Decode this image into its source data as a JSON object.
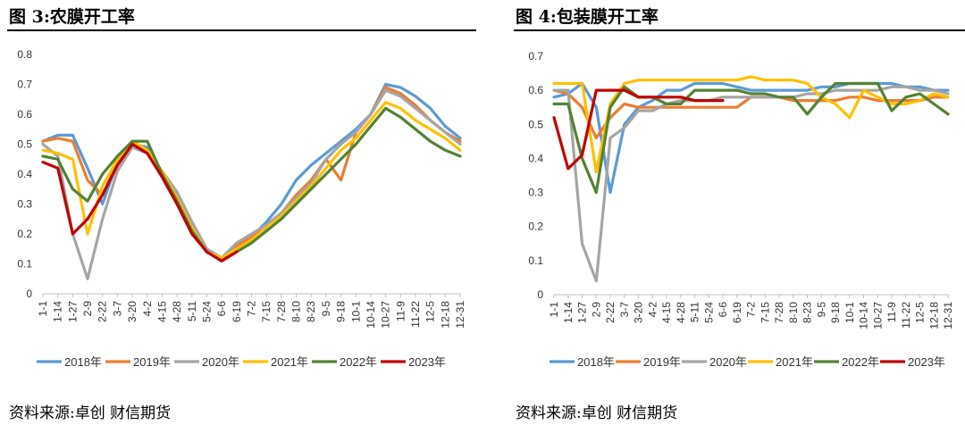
{
  "chart_data": [
    {
      "type": "line",
      "figure_label": "图 3:",
      "title": "农膜开工率",
      "source": "资料来源:卓创 财信期货",
      "ylim": [
        0,
        0.8
      ],
      "yticks": [
        "0",
        "0.1",
        "0.2",
        "0.3",
        "0.4",
        "0.5",
        "0.6",
        "0.7",
        "0.8"
      ],
      "categories": [
        "1-1",
        "1-14",
        "1-27",
        "2-9",
        "2-22",
        "3-7",
        "3-20",
        "4-2",
        "4-15",
        "4-28",
        "5-11",
        "5-24",
        "6-6",
        "6-19",
        "7-2",
        "7-15",
        "7-28",
        "8-10",
        "8-23",
        "9-5",
        "9-18",
        "10-1",
        "10-14",
        "10-27",
        "11-9",
        "11-22",
        "12-5",
        "12-18",
        "12-31"
      ],
      "legend_position": "bottom",
      "grid": false,
      "series": [
        {
          "name": "2018年",
          "color": "#5B9BD5",
          "values": [
            0.51,
            0.53,
            0.53,
            0.42,
            0.3,
            0.44,
            0.5,
            0.49,
            0.4,
            0.33,
            0.22,
            0.14,
            0.12,
            0.16,
            0.19,
            0.24,
            0.3,
            0.38,
            0.43,
            0.47,
            0.51,
            0.55,
            0.6,
            0.7,
            0.69,
            0.66,
            0.62,
            0.56,
            0.52
          ]
        },
        {
          "name": "2019年",
          "color": "#ED7D31",
          "values": [
            0.51,
            0.52,
            0.51,
            0.38,
            0.33,
            0.44,
            0.51,
            0.48,
            0.4,
            0.31,
            0.21,
            0.14,
            0.11,
            0.16,
            0.19,
            0.23,
            0.27,
            0.33,
            0.38,
            0.45,
            0.38,
            0.54,
            0.6,
            0.69,
            0.67,
            0.63,
            0.58,
            0.54,
            0.51
          ]
        },
        {
          "name": "2020年",
          "color": "#A5A5A5",
          "values": [
            0.5,
            0.46,
            0.2,
            0.05,
            0.25,
            0.41,
            0.49,
            0.47,
            0.41,
            0.34,
            0.24,
            0.15,
            0.12,
            0.17,
            0.2,
            0.23,
            0.27,
            0.32,
            0.37,
            0.45,
            0.5,
            0.54,
            0.6,
            0.68,
            0.66,
            0.62,
            0.58,
            0.54,
            0.5
          ]
        },
        {
          "name": "2021年",
          "color": "#FFC000",
          "values": [
            0.48,
            0.47,
            0.45,
            0.2,
            0.36,
            0.45,
            0.51,
            0.48,
            0.41,
            0.32,
            0.22,
            0.14,
            0.12,
            0.15,
            0.18,
            0.22,
            0.26,
            0.31,
            0.36,
            0.42,
            0.48,
            0.52,
            0.58,
            0.64,
            0.62,
            0.58,
            0.55,
            0.52,
            0.48
          ]
        },
        {
          "name": "2022年",
          "color": "#548235",
          "values": [
            0.46,
            0.45,
            0.35,
            0.31,
            0.4,
            0.46,
            0.51,
            0.51,
            0.4,
            0.31,
            0.21,
            0.14,
            0.11,
            0.14,
            0.17,
            0.21,
            0.25,
            0.3,
            0.35,
            0.4,
            0.45,
            0.5,
            0.56,
            0.62,
            0.59,
            0.55,
            0.51,
            0.48,
            0.46
          ]
        },
        {
          "name": "2023年",
          "color": "#C00000",
          "values": [
            0.44,
            0.42,
            0.2,
            0.25,
            0.33,
            0.43,
            0.5,
            0.47,
            0.39,
            0.3,
            0.2,
            0.14,
            0.11,
            0.14,
            null,
            null,
            null,
            null,
            null,
            null,
            null,
            null,
            null,
            null,
            null,
            null,
            null,
            null,
            null
          ]
        }
      ]
    },
    {
      "type": "line",
      "figure_label": "图 4:",
      "title": "包装膜开工率",
      "source": "资料来源:卓创 财信期货",
      "ylim": [
        0,
        0.7
      ],
      "yticks": [
        "0",
        "0.1",
        "0.2",
        "0.3",
        "0.4",
        "0.5",
        "0.6",
        "0.7"
      ],
      "categories": [
        "1-1",
        "1-14",
        "1-27",
        "2-9",
        "2-22",
        "3-7",
        "3-20",
        "4-2",
        "4-15",
        "4-28",
        "5-11",
        "5-24",
        "6-6",
        "6-19",
        "7-2",
        "7-15",
        "7-28",
        "8-10",
        "8-23",
        "9-5",
        "9-18",
        "10-1",
        "10-14",
        "10-27",
        "11-9",
        "11-22",
        "12-5",
        "12-18",
        "12-31"
      ],
      "legend_position": "bottom",
      "grid": false,
      "series": [
        {
          "name": "2018年",
          "color": "#5B9BD5",
          "values": [
            0.58,
            0.59,
            0.62,
            0.55,
            0.3,
            0.5,
            0.55,
            0.57,
            0.6,
            0.6,
            0.62,
            0.62,
            0.62,
            0.61,
            0.6,
            0.6,
            0.6,
            0.6,
            0.6,
            0.61,
            0.61,
            0.62,
            0.62,
            0.62,
            0.62,
            0.61,
            0.61,
            0.6,
            0.6
          ]
        },
        {
          "name": "2019年",
          "color": "#ED7D31",
          "values": [
            0.6,
            0.59,
            0.55,
            0.46,
            0.52,
            0.56,
            0.55,
            0.55,
            0.55,
            0.55,
            0.55,
            0.55,
            0.55,
            0.55,
            0.58,
            0.58,
            0.58,
            0.57,
            0.57,
            0.57,
            0.57,
            0.58,
            0.58,
            0.57,
            0.57,
            0.57,
            0.57,
            0.58,
            0.58
          ]
        },
        {
          "name": "2020年",
          "color": "#A5A5A5",
          "values": [
            0.6,
            0.6,
            0.15,
            0.04,
            0.46,
            0.49,
            0.54,
            0.54,
            0.56,
            0.57,
            0.57,
            0.57,
            0.58,
            0.58,
            0.58,
            0.58,
            0.58,
            0.58,
            0.59,
            0.59,
            0.6,
            0.6,
            0.6,
            0.6,
            0.61,
            0.61,
            0.6,
            0.6,
            0.59
          ]
        },
        {
          "name": "2021年",
          "color": "#FFC000",
          "values": [
            0.62,
            0.62,
            0.62,
            0.36,
            0.56,
            0.62,
            0.63,
            0.63,
            0.63,
            0.63,
            0.63,
            0.63,
            0.63,
            0.63,
            0.64,
            0.63,
            0.63,
            0.63,
            0.62,
            0.58,
            0.56,
            0.52,
            0.6,
            0.58,
            0.56,
            0.56,
            0.57,
            0.59,
            0.58
          ]
        },
        {
          "name": "2022年",
          "color": "#548235",
          "values": [
            0.56,
            0.56,
            0.4,
            0.3,
            0.55,
            0.61,
            0.58,
            0.58,
            0.56,
            0.56,
            0.6,
            0.6,
            0.6,
            0.6,
            0.59,
            0.59,
            0.58,
            0.58,
            0.53,
            0.58,
            0.62,
            0.62,
            0.62,
            0.62,
            0.54,
            0.58,
            0.59,
            0.56,
            0.53
          ]
        },
        {
          "name": "2023年",
          "color": "#C00000",
          "values": [
            0.52,
            0.37,
            0.41,
            0.6,
            0.6,
            0.6,
            0.58,
            0.58,
            0.58,
            0.58,
            0.57,
            0.57,
            0.57,
            null,
            null,
            null,
            null,
            null,
            null,
            null,
            null,
            null,
            null,
            null,
            null,
            null,
            null,
            null,
            null
          ]
        }
      ]
    }
  ]
}
